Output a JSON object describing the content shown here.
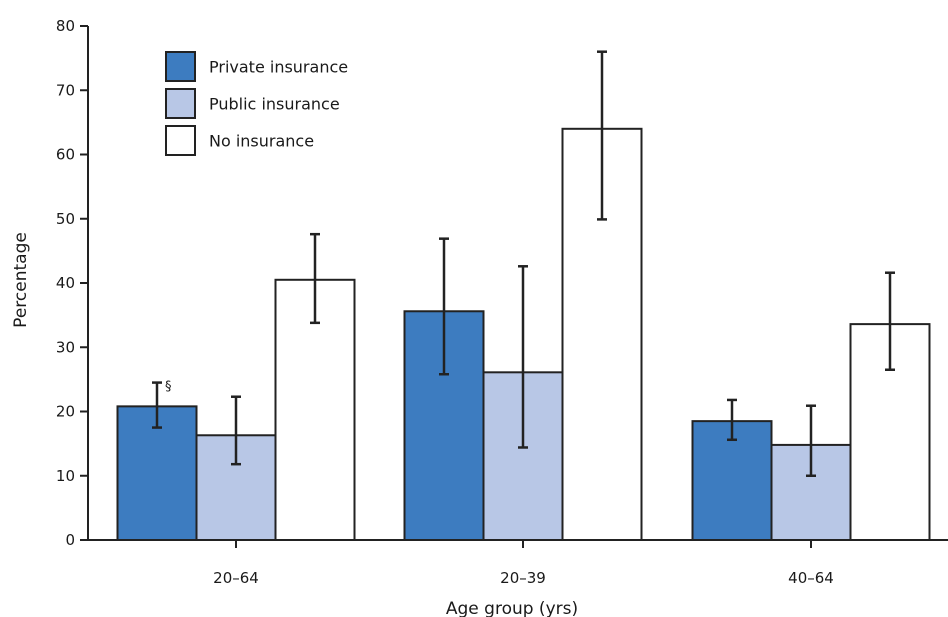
{
  "chart_data": {
    "type": "bar",
    "title": "",
    "xlabel": "Age group (yrs)",
    "ylabel": "Percentage",
    "ylim": [
      0,
      80
    ],
    "yticks": [
      0,
      10,
      20,
      30,
      40,
      50,
      60,
      70,
      80
    ],
    "grid": false,
    "legend_position": "top-left",
    "categories": [
      "20–64",
      "20–39",
      "40–64"
    ],
    "series": [
      {
        "name": "Private insurance",
        "color": "#3d7cc0",
        "values": [
          20.8,
          35.6,
          18.5
        ],
        "ci_low": [
          17.5,
          25.8,
          15.6
        ],
        "ci_high": [
          24.5,
          46.9,
          21.8
        ]
      },
      {
        "name": "Public insurance",
        "color": "#b8c7e6",
        "values": [
          16.3,
          26.1,
          14.8
        ],
        "ci_low": [
          11.8,
          14.4,
          10.0
        ],
        "ci_high": [
          22.3,
          42.6,
          20.9
        ]
      },
      {
        "name": "No insurance",
        "color": "#ffffff",
        "values": [
          40.5,
          64.0,
          33.6
        ],
        "ci_low": [
          33.8,
          49.9,
          26.5
        ],
        "ci_high": [
          47.6,
          76.0,
          41.6
        ]
      }
    ],
    "annotations": [
      {
        "text": "§",
        "category_index": 0,
        "series_index": 0
      }
    ]
  }
}
